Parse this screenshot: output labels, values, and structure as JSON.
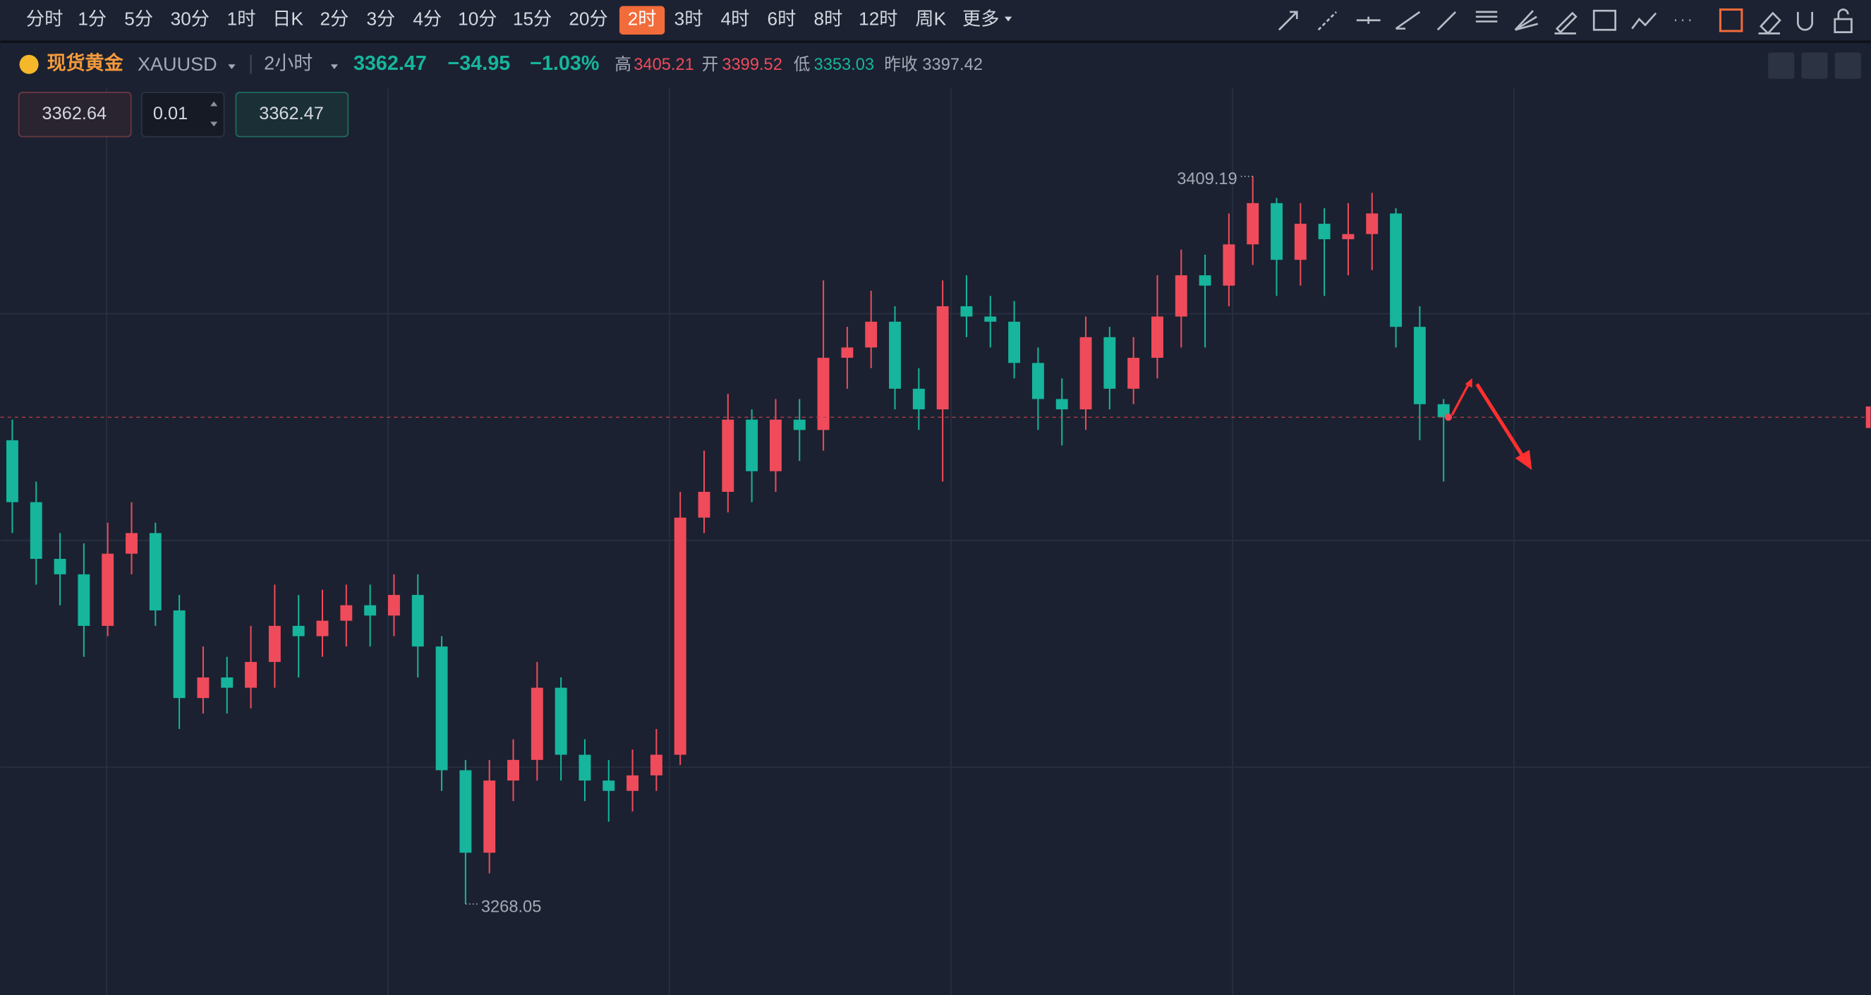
{
  "toolbar": {
    "tabs": [
      "分时",
      "1分",
      "5分",
      "30分",
      "1时",
      "日K",
      "2分",
      "3分",
      "4分",
      "10分",
      "15分",
      "20分",
      "2时",
      "3时",
      "4时",
      "6时",
      "8时",
      "12时",
      "周K",
      "更多"
    ],
    "active": "2时"
  },
  "quote": {
    "name": "现货黄金",
    "symbol": "XAUUSD",
    "period": "2小时",
    "price": "3362.47",
    "change": "−34.95",
    "change_pct": "−1.03%",
    "high_label": "高",
    "high": "3405.21",
    "open_label": "开",
    "open": "3399.52",
    "low_label": "低",
    "low": "3353.03",
    "prev_close_label": "昨收",
    "prev_close": "3397.42"
  },
  "order": {
    "sell": "3362.64",
    "lots": "0.01",
    "buy": "3362.47"
  },
  "chart_data": {
    "type": "candlestick",
    "up_color": "#ef4b5b",
    "down_color": "#16b59c",
    "ylim": [
      3250.4,
      3443.4
    ],
    "open": [
      3358,
      3346,
      3335,
      3332,
      3322,
      3336,
      3340,
      3325,
      3308,
      3312,
      3310,
      3315,
      3322,
      3320,
      3323,
      3326,
      3324,
      3328,
      3318,
      3294,
      3278,
      3292,
      3296,
      3310,
      3297,
      3292,
      3290,
      3293,
      3297,
      3343,
      3348,
      3362,
      3352,
      3362,
      3360,
      3374,
      3376,
      3381,
      3368,
      3364,
      3384,
      3382,
      3381,
      3373,
      3366,
      3364,
      3378,
      3368,
      3374,
      3382,
      3390,
      3388,
      3396,
      3404,
      3393,
      3400,
      3397,
      3398,
      3402,
      3380,
      3365
    ],
    "high": [
      3362,
      3350,
      3340,
      3338,
      3342,
      3346,
      3342,
      3328,
      3318,
      3316,
      3322,
      3330,
      3328,
      3329,
      3330,
      3330,
      3332,
      3332,
      3320,
      3296,
      3296,
      3300,
      3315,
      3312,
      3300,
      3296,
      3298,
      3302,
      3348,
      3356,
      3367,
      3364,
      3366,
      3366,
      3389,
      3380,
      3387,
      3384,
      3372,
      3389,
      3390,
      3386,
      3385,
      3376,
      3370,
      3382,
      3380,
      3378,
      3390,
      3395,
      3394,
      3402,
      3409.19,
      3405,
      3404,
      3403,
      3404,
      3406,
      3403,
      3384,
      3366
    ],
    "low": [
      3340,
      3330,
      3326,
      3316,
      3320,
      3332,
      3322,
      3302,
      3305,
      3305,
      3306,
      3310,
      3312,
      3316,
      3318,
      3318,
      3320,
      3312,
      3290,
      3268.05,
      3274,
      3288,
      3292,
      3292,
      3288,
      3284,
      3286,
      3290,
      3295,
      3340,
      3344,
      3346,
      3348,
      3354,
      3356,
      3368,
      3372,
      3364,
      3360,
      3350,
      3378,
      3376,
      3370,
      3360,
      3357,
      3360,
      3364,
      3365,
      3370,
      3376,
      3376,
      3384,
      3392,
      3386,
      3388,
      3386,
      3390,
      3391,
      3376,
      3358,
      3350
    ],
    "close": [
      3346,
      3335,
      3332,
      3322,
      3336,
      3340,
      3325,
      3308,
      3312,
      3310,
      3315,
      3322,
      3320,
      3323,
      3326,
      3324,
      3328,
      3318,
      3294,
      3278,
      3292,
      3296,
      3310,
      3297,
      3292,
      3290,
      3293,
      3297,
      3343,
      3348,
      3362,
      3352,
      3362,
      3360,
      3374,
      3376,
      3381,
      3368,
      3364,
      3384,
      3382,
      3381,
      3373,
      3366,
      3364,
      3378,
      3368,
      3374,
      3382,
      3390,
      3388,
      3396,
      3404,
      3393,
      3400,
      3397,
      3398,
      3402,
      3380,
      3365,
      3362.47
    ]
  }
}
